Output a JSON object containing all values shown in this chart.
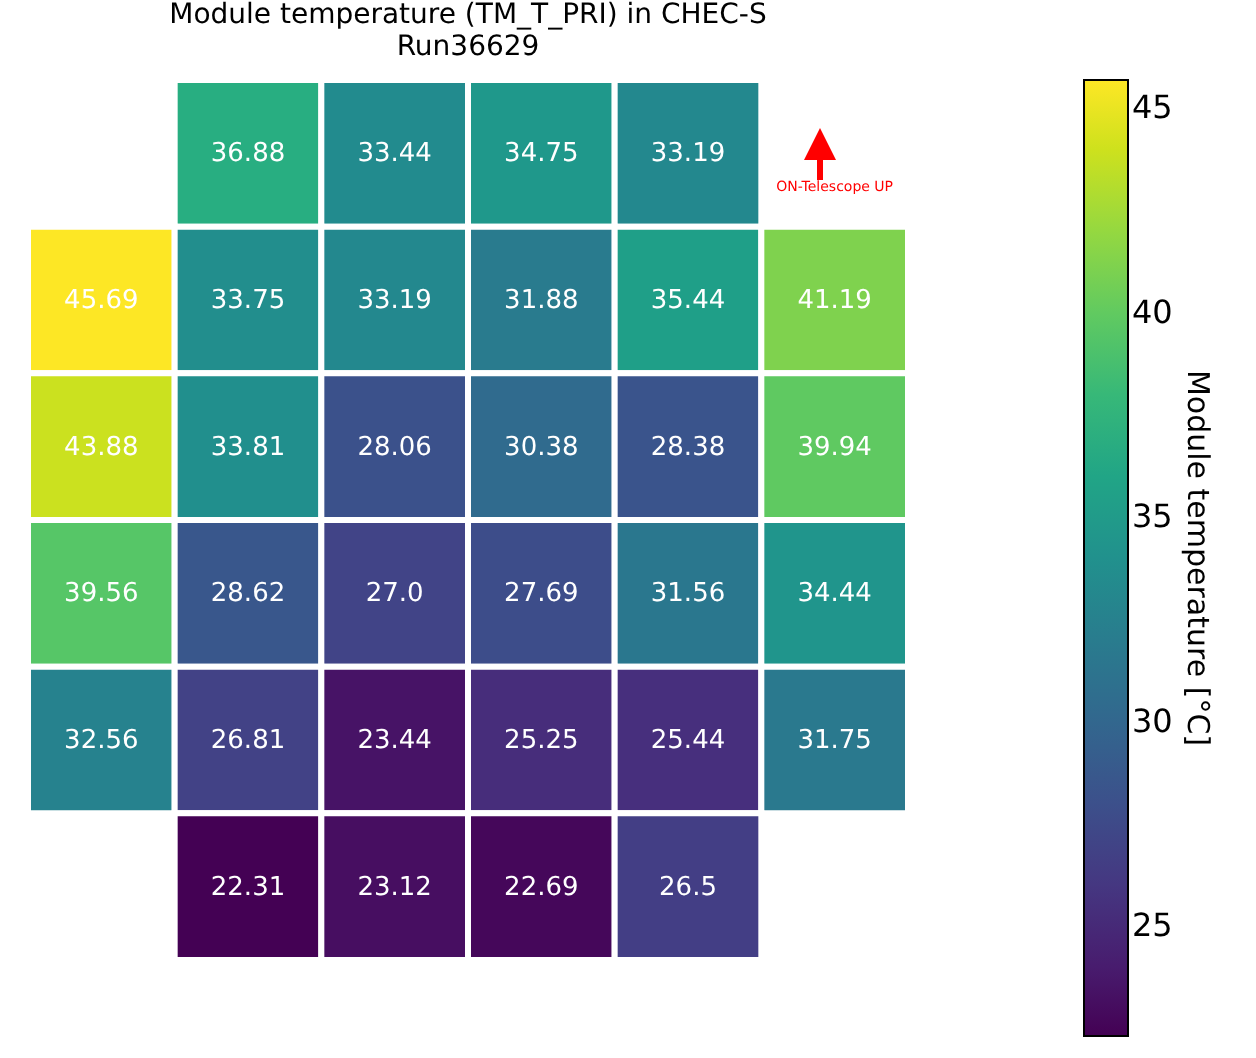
{
  "chart_data": {
    "type": "heatmap",
    "title": [
      "Module temperature (TM_T_PRI) in CHEC-S",
      "Run36629"
    ],
    "clabel": "Module temperature [°C]",
    "categories": [
      null,
      null,
      null,
      null,
      null,
      null
    ],
    "y_categories": [
      null,
      null,
      null,
      null,
      null,
      null
    ],
    "cells": [
      [
        null,
        36.88,
        33.44,
        34.75,
        33.19,
        null
      ],
      [
        45.69,
        33.75,
        33.19,
        31.88,
        35.44,
        41.19
      ],
      [
        43.88,
        33.81,
        28.06,
        30.38,
        28.38,
        39.94
      ],
      [
        39.56,
        28.62,
        27.0,
        27.69,
        31.56,
        34.44
      ],
      [
        32.56,
        26.81,
        23.44,
        25.25,
        25.44,
        31.75
      ],
      [
        null,
        22.31,
        23.12,
        22.69,
        26.5,
        null
      ]
    ],
    "cell_labels": [
      [
        null,
        "36.88",
        "33.44",
        "34.75",
        "33.19",
        null
      ],
      [
        "45.69",
        "33.75",
        "33.19",
        "31.88",
        "35.44",
        "41.19"
      ],
      [
        "43.88",
        "33.81",
        "28.06",
        "30.38",
        "28.38",
        "39.94"
      ],
      [
        "39.56",
        "28.62",
        "27.0",
        "27.69",
        "31.56",
        "34.44"
      ],
      [
        "32.56",
        "26.81",
        "23.44",
        "25.25",
        "25.44",
        "31.75"
      ],
      [
        null,
        "22.31",
        "23.12",
        "22.69",
        "26.5",
        null
      ]
    ],
    "clim": [
      22.31,
      45.69
    ],
    "cticks": [
      25,
      30,
      35,
      40,
      45
    ],
    "annotations": [
      "ON-Telescope UP"
    ]
  }
}
